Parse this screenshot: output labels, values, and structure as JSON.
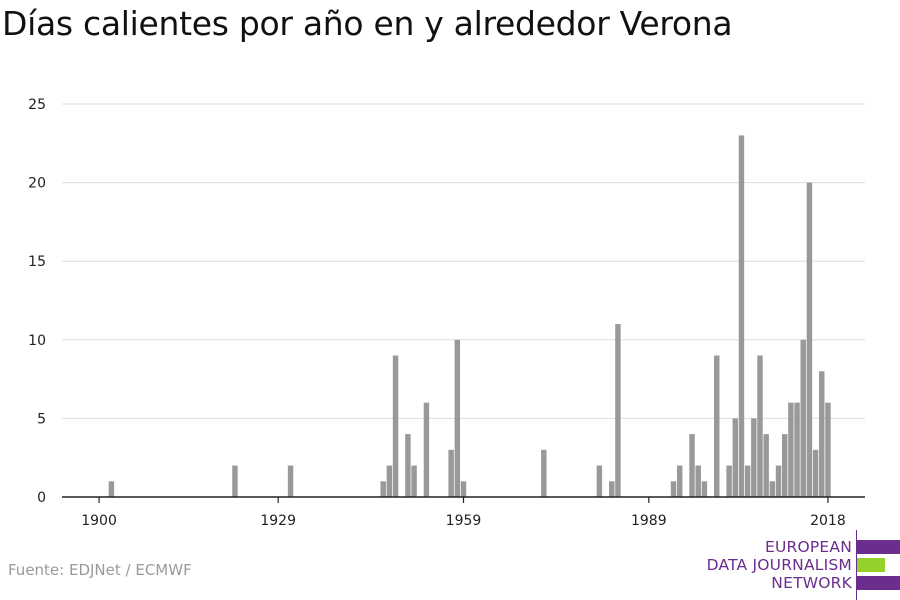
{
  "title": "Días calientes por año en y alrededor Verona",
  "source": "Fuente: EDJNet / ECMWF",
  "logo": {
    "lines": [
      "EUROPEAN",
      "DATA JOURNALISM",
      "NETWORK"
    ],
    "colors": {
      "purple": "#6b2d8e",
      "green": "#94d12b"
    }
  },
  "colors": {
    "bar": "#999999",
    "grid": "#dddddd",
    "axis": "#222222"
  },
  "chart_data": {
    "type": "bar",
    "title": "Días calientes por año en y alrededor Verona",
    "xlabel": "",
    "ylabel": "",
    "x_ticks": [
      1900,
      1929,
      1959,
      1989,
      2018
    ],
    "y_ticks": [
      0,
      5,
      10,
      15,
      20,
      25
    ],
    "ylim": [
      0,
      25
    ],
    "xlim": [
      1894,
      2024
    ],
    "grid": true,
    "x": [
      1902,
      1922,
      1931,
      1946,
      1947,
      1948,
      1950,
      1951,
      1953,
      1957,
      1958,
      1959,
      1972,
      1981,
      1983,
      1984,
      1993,
      1994,
      1996,
      1997,
      1998,
      2000,
      2002,
      2003,
      2004,
      2005,
      2006,
      2007,
      2008,
      2009,
      2010,
      2011,
      2012,
      2013,
      2014,
      2015,
      2016,
      2017,
      2018,
      2019
    ],
    "values": [
      1,
      2,
      2,
      1,
      2,
      9,
      4,
      2,
      6,
      3,
      10,
      1,
      3,
      2,
      1,
      11,
      1,
      2,
      4,
      2,
      1,
      9,
      2,
      5,
      23,
      2,
      5,
      9,
      4,
      1,
      2,
      4,
      6,
      6,
      10,
      20,
      3,
      8,
      6,
      0
    ]
  }
}
